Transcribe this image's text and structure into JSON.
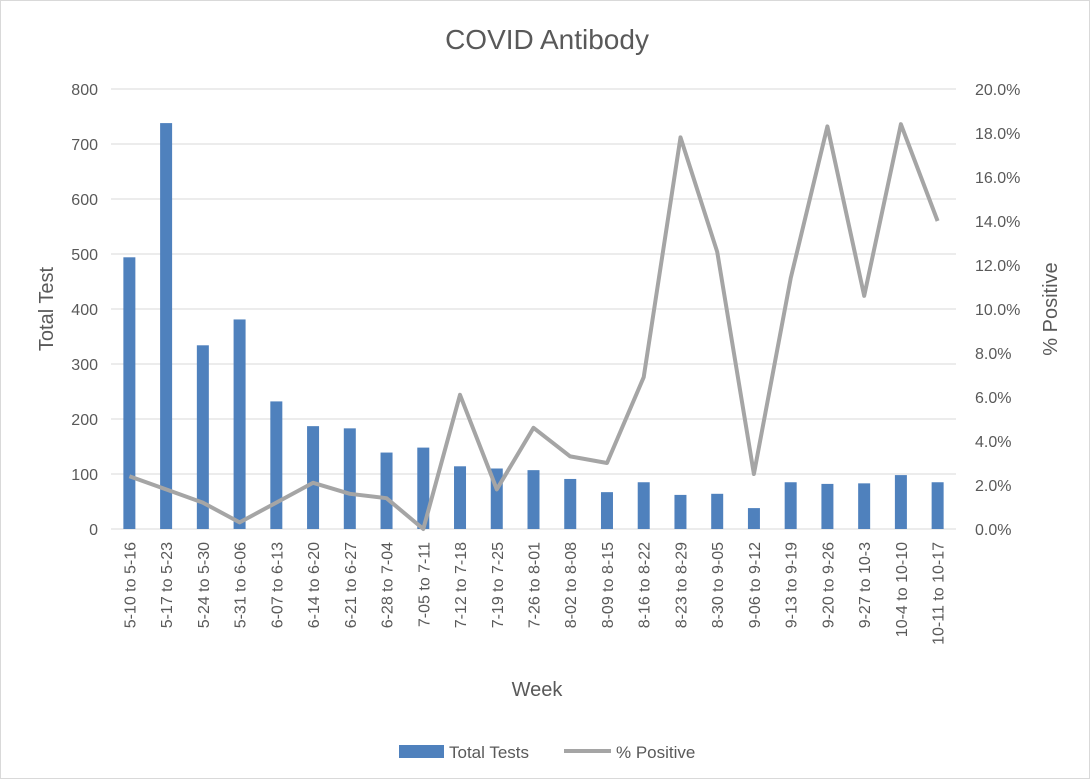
{
  "chart_data": {
    "type": "bar",
    "title": "COVID Antibody",
    "xlabel": "Week",
    "ylabel": "Total Test",
    "y2label": "% Positive",
    "ylim": [
      0,
      800
    ],
    "y2lim": [
      0,
      0.2
    ],
    "yticks": [
      "0",
      "100",
      "200",
      "300",
      "400",
      "500",
      "600",
      "700",
      "800"
    ],
    "y2ticks": [
      "0.0%",
      "2.0%",
      "4.0%",
      "6.0%",
      "8.0%",
      "10.0%",
      "12.0%",
      "14.0%",
      "16.0%",
      "18.0%",
      "20.0%"
    ],
    "categories": [
      "5-10 to 5-16",
      "5-17 to 5-23",
      "5-24 to 5-30",
      "5-31 to 6-06",
      "6-07 to 6-13",
      "6-14 to 6-20",
      "6-21 to 6-27",
      "6-28 to 7-04",
      "7-05 to 7-11",
      "7-12 to 7-18",
      "7-19 to 7-25",
      "7-26 to 8-01",
      "8-02 to 8-08",
      "8-09 to 8-15",
      "8-16 to 8-22",
      "8-23 to 8-29",
      "8-30 to 9-05",
      "9-06 to 9-12",
      "9-13 to 9-19",
      "9-20 to 9-26",
      "9-27 to 10-3",
      "10-4 to 10-10",
      "10-11 to 10-17"
    ],
    "series": [
      {
        "name": "Total Tests",
        "type": "bar",
        "axis": "left",
        "color": "#4f81bd",
        "values": [
          494,
          738,
          334,
          381,
          232,
          187,
          183,
          139,
          148,
          114,
          110,
          107,
          91,
          67,
          85,
          62,
          64,
          38,
          85,
          82,
          83,
          98,
          85
        ]
      },
      {
        "name": "% Positive",
        "type": "line",
        "axis": "right",
        "color": "#a5a5a5",
        "values": [
          0.024,
          0.018,
          0.012,
          0.003,
          0.012,
          0.021,
          0.016,
          0.014,
          0.0,
          0.061,
          0.018,
          0.046,
          0.033,
          0.03,
          0.069,
          0.178,
          0.126,
          0.025,
          0.114,
          0.183,
          0.106,
          0.184,
          0.14
        ]
      }
    ],
    "legend": "bottom",
    "grid": true
  }
}
